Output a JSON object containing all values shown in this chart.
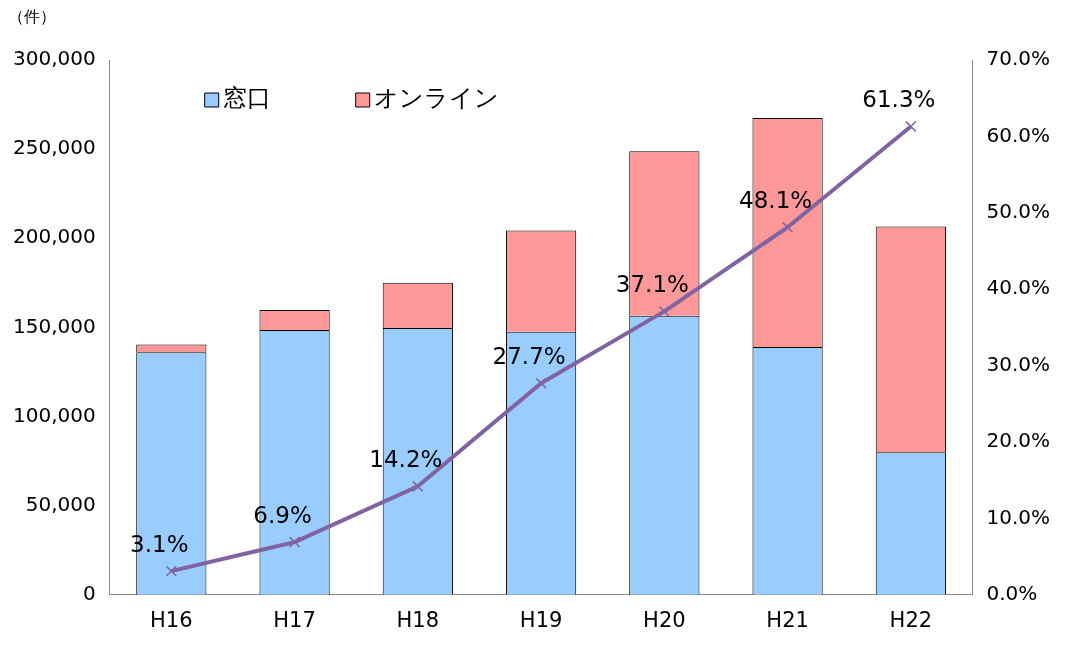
{
  "chart_data": {
    "type": "bar",
    "stacked": true,
    "ylabel": "（件）",
    "categories": [
      "H16",
      "H17",
      "H18",
      "H19",
      "H20",
      "H21",
      "H22"
    ],
    "series": [
      {
        "name": "窓口",
        "color": "#99ccff",
        "values": [
          136000,
          148600,
          149700,
          147500,
          156500,
          139000,
          79900
        ]
      },
      {
        "name": "オンライン",
        "color": "#ff9999",
        "values": [
          4400,
          11200,
          25300,
          56800,
          92300,
          128400,
          126700
        ]
      },
      {
        "type": "line",
        "axis": "y2",
        "color": "#8064a2",
        "marker": "cross",
        "values": [
          3.1,
          6.9,
          14.2,
          27.7,
          37.1,
          48.1,
          61.3
        ],
        "value_labels": [
          "3.1%",
          "6.9%",
          "14.2%",
          "27.7%",
          "37.1%",
          "48.1%",
          "61.3%"
        ]
      }
    ],
    "ylim": [
      0,
      300000
    ],
    "yticks": [
      {
        "value": 0,
        "label": "0"
      },
      {
        "value": 50000,
        "label": "50,000"
      },
      {
        "value": 100000,
        "label": "100,000"
      },
      {
        "value": 150000,
        "label": "150,000"
      },
      {
        "value": 200000,
        "label": "200,000"
      },
      {
        "value": 250000,
        "label": "250,000"
      },
      {
        "value": 300000,
        "label": "300,000"
      }
    ],
    "y2lim": [
      0,
      70
    ],
    "y2ticks": [
      {
        "value": 0,
        "label": "0.0%"
      },
      {
        "value": 10,
        "label": "10.0%"
      },
      {
        "value": 20,
        "label": "20.0%"
      },
      {
        "value": 30,
        "label": "30.0%"
      },
      {
        "value": 40,
        "label": "40.0%"
      },
      {
        "value": 50,
        "label": "50.0%"
      },
      {
        "value": 60,
        "label": "60.0%"
      },
      {
        "value": 70,
        "label": "70.0%"
      }
    ],
    "grid": false,
    "legend": "top left"
  }
}
